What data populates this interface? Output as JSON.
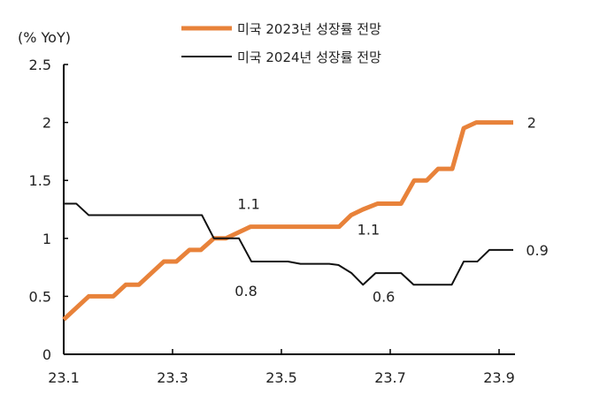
{
  "chart_data": {
    "type": "line",
    "unit_label": "(% YoY)",
    "xlim": [
      1,
      9.4
    ],
    "ylim": [
      0,
      2.5
    ],
    "x_ticks": [
      {
        "v": 1,
        "label": "23.1"
      },
      {
        "v": 3,
        "label": "23.3"
      },
      {
        "v": 5,
        "label": "23.5"
      },
      {
        "v": 7,
        "label": "23.7"
      },
      {
        "v": 9,
        "label": "23.9"
      }
    ],
    "y_ticks": [
      {
        "v": 0,
        "label": "0"
      },
      {
        "v": 0.5,
        "label": "0.5"
      },
      {
        "v": 1,
        "label": "1"
      },
      {
        "v": 1.5,
        "label": "1.5"
      },
      {
        "v": 2,
        "label": "2"
      },
      {
        "v": 2.5,
        "label": "2.5"
      }
    ],
    "grid": false,
    "legend_position": "top",
    "series": [
      {
        "name": "미국 2023년 성장률 전망",
        "color": "#E8823A",
        "points": [
          [
            1,
            0.3
          ],
          [
            1.46,
            0.5
          ],
          [
            1.91,
            0.5
          ],
          [
            2.14,
            0.6
          ],
          [
            2.38,
            0.6
          ],
          [
            2.84,
            0.8
          ],
          [
            3.07,
            0.8
          ],
          [
            3.31,
            0.9
          ],
          [
            3.52,
            0.9
          ],
          [
            3.76,
            1.0
          ],
          [
            3.98,
            1.0
          ],
          [
            4.43,
            1.1
          ],
          [
            6.06,
            1.1
          ],
          [
            6.28,
            1.2
          ],
          [
            6.5,
            1.25
          ],
          [
            6.77,
            1.3
          ],
          [
            7.2,
            1.3
          ],
          [
            7.44,
            1.5
          ],
          [
            7.67,
            1.5
          ],
          [
            7.88,
            1.6
          ],
          [
            8.14,
            1.6
          ],
          [
            8.35,
            1.95
          ],
          [
            8.58,
            2.0
          ],
          [
            9.26,
            2.0
          ]
        ]
      },
      {
        "name": "미국 2024년 성장률 전망",
        "color": "#111111",
        "points": [
          [
            1,
            1.3
          ],
          [
            1.23,
            1.3
          ],
          [
            1.46,
            1.2
          ],
          [
            3.54,
            1.2
          ],
          [
            3.76,
            1.0
          ],
          [
            4.22,
            1.0
          ],
          [
            4.45,
            0.8
          ],
          [
            5.12,
            0.8
          ],
          [
            5.35,
            0.78
          ],
          [
            5.88,
            0.78
          ],
          [
            6.05,
            0.77
          ],
          [
            6.29,
            0.7
          ],
          [
            6.5,
            0.6
          ],
          [
            6.73,
            0.7
          ],
          [
            7.2,
            0.7
          ],
          [
            7.43,
            0.6
          ],
          [
            8.13,
            0.6
          ],
          [
            8.35,
            0.8
          ],
          [
            8.6,
            0.8
          ],
          [
            8.82,
            0.9
          ],
          [
            9.26,
            0.9
          ]
        ]
      }
    ],
    "annotations": [
      {
        "text": "1.1",
        "x": 4.4,
        "y": 1.3
      },
      {
        "text": "0.8",
        "x": 4.35,
        "y": 0.55
      },
      {
        "text": "1.1",
        "x": 6.6,
        "y": 1.08
      },
      {
        "text": "0.6",
        "x": 6.88,
        "y": 0.5
      },
      {
        "text": "2",
        "x": 9.6,
        "y": 2.0
      },
      {
        "text": "0.9",
        "x": 9.7,
        "y": 0.9
      }
    ]
  }
}
